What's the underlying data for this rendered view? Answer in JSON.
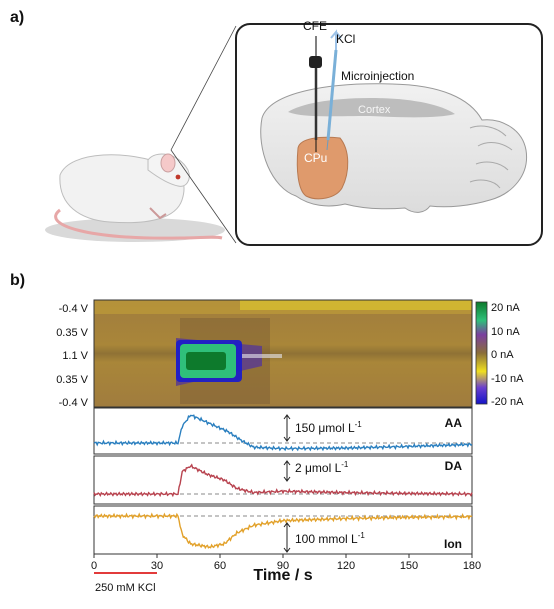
{
  "panel_a": {
    "label": "a)",
    "callouts": {
      "cfe": "CFE",
      "kcl": "KCl",
      "microinjection": "Microinjection",
      "cortex": "Cortex",
      "cpu": "CPu"
    }
  },
  "panel_b": {
    "label": "b)"
  },
  "colors": {
    "aa": "#2a7fbf",
    "da": "#b8434f",
    "ion": "#e2a12a",
    "brain_region": "#df9a6c",
    "stim_bar": "#e23b3b"
  },
  "chart_data": {
    "type": "heatmap+line",
    "x_axis": {
      "label": "Time / s",
      "ticks": [
        0,
        30,
        60,
        90,
        120,
        150,
        180
      ],
      "range": [
        0,
        180
      ]
    },
    "heatmap": {
      "y_tick_labels": [
        "-0.4 V",
        "0.35 V",
        "1.1 V",
        "0.35 V",
        "-0.4 V"
      ],
      "colorbar_ticks": [
        "20 nA",
        "10 nA",
        "0 nA",
        "-10 nA",
        "-20 nA"
      ],
      "colorbar_range_nA": [
        -20,
        20
      ],
      "event": {
        "start_s": 42,
        "end_s": 66,
        "peak_nA": 15
      }
    },
    "stimulus": {
      "label": "250 mM KCl",
      "start_s": 0,
      "end_s": 30
    },
    "series": [
      {
        "name": "AA",
        "scale_label": "150 μmol L",
        "scale_exponent": "-1",
        "points": [
          [
            0,
            0
          ],
          [
            40,
            0
          ],
          [
            42,
            0.6
          ],
          [
            46,
            1.0
          ],
          [
            52,
            0.8
          ],
          [
            58,
            0.6
          ],
          [
            64,
            0.4
          ],
          [
            70,
            0.1
          ],
          [
            76,
            -0.15
          ],
          [
            90,
            -0.2
          ],
          [
            120,
            -0.18
          ],
          [
            150,
            -0.12
          ],
          [
            180,
            -0.05
          ]
        ]
      },
      {
        "name": "DA",
        "scale_label": "2 μmol L",
        "scale_exponent": "-1",
        "points": [
          [
            0,
            0
          ],
          [
            40,
            0
          ],
          [
            42,
            0.8
          ],
          [
            46,
            1.0
          ],
          [
            54,
            0.7
          ],
          [
            62,
            0.5
          ],
          [
            68,
            0.2
          ],
          [
            76,
            0.05
          ],
          [
            90,
            0.1
          ],
          [
            120,
            0.05
          ],
          [
            150,
            0.02
          ],
          [
            180,
            0
          ]
        ]
      },
      {
        "name": "Ion",
        "scale_label": "100 mmol L",
        "scale_exponent": "-1",
        "points": [
          [
            0,
            0
          ],
          [
            40,
            0
          ],
          [
            42,
            -0.6
          ],
          [
            46,
            -0.9
          ],
          [
            55,
            -1.0
          ],
          [
            62,
            -0.9
          ],
          [
            68,
            -0.55
          ],
          [
            76,
            -0.3
          ],
          [
            90,
            -0.15
          ],
          [
            120,
            -0.08
          ],
          [
            150,
            -0.04
          ],
          [
            180,
            -0.02
          ]
        ]
      }
    ]
  }
}
